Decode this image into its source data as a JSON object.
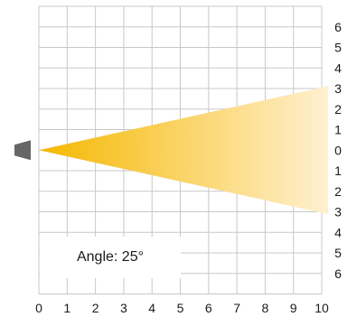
{
  "angle_label": "Angle: 25°",
  "chart_data": {
    "type": "diagram",
    "x_ticks": [
      "0",
      "1",
      "2",
      "3",
      "4",
      "5",
      "6",
      "7",
      "8",
      "9",
      "10"
    ],
    "y_ticks": [
      "6",
      "5",
      "4",
      "3",
      "2",
      "1",
      "0",
      "1",
      "2",
      "3",
      "4",
      "5",
      "6"
    ],
    "angle_deg": 25,
    "beam_origin": [
      0,
      0
    ],
    "beam_length": 10,
    "beam_color_start": "#f5b800",
    "beam_color_end": "#fff0d0",
    "source_color": "#666666",
    "grid": true
  }
}
